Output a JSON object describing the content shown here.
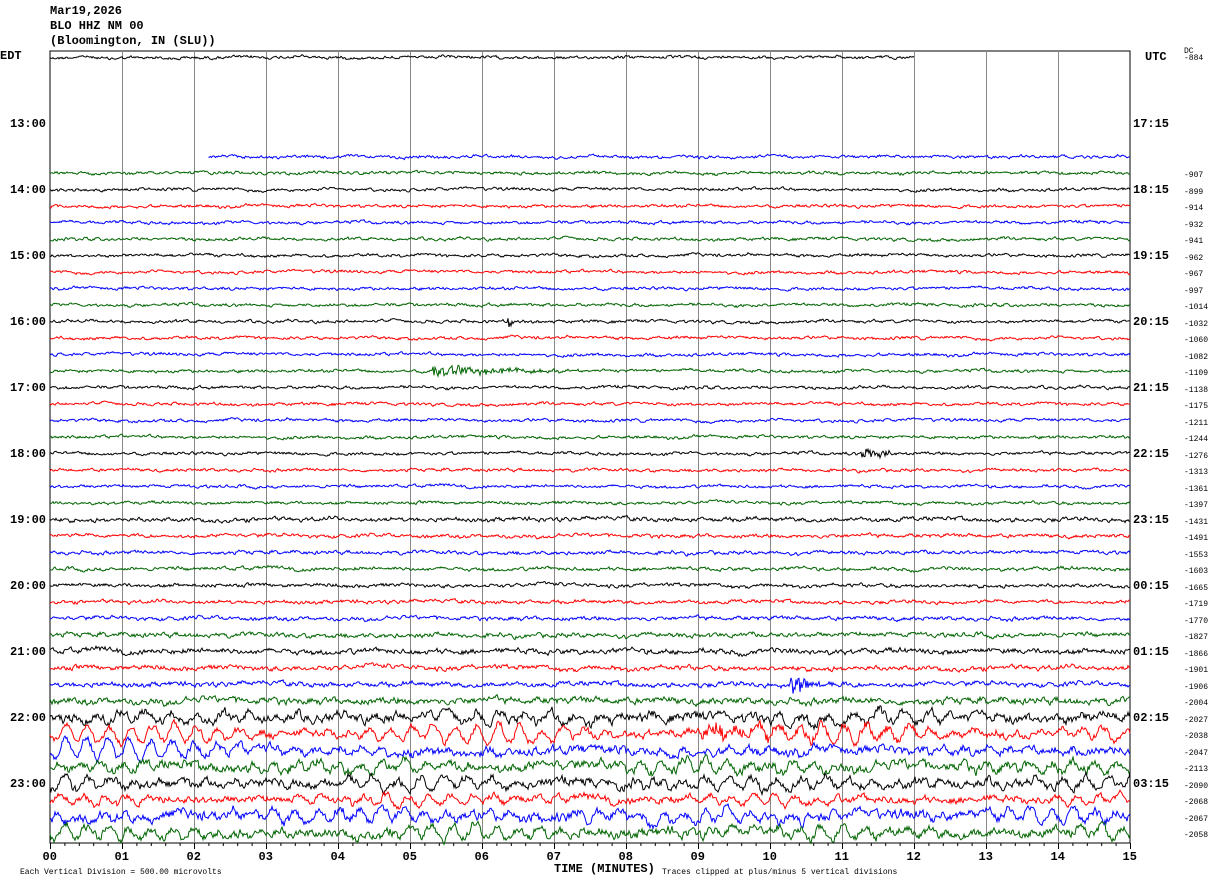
{
  "header": {
    "date": "Mar19,2026",
    "station": "BLO HHZ NM 00",
    "location": "(Bloomington, IN (SLU))"
  },
  "left_zone": "EDT",
  "right_zone": "UTC",
  "dc_label": "DC",
  "footer": {
    "scale": "Each Vertical Division =  500.00 microvolts",
    "xlabel": "TIME (MINUTES)",
    "clip": "Traces clipped at plus/minus 5 vertical divisions"
  },
  "chart_data": {
    "type": "line",
    "title": "BLO HHZ NM 00 helicorder",
    "xlabel": "TIME (MINUTES)",
    "xlim": [
      0,
      15
    ],
    "x_ticks": [
      "00",
      "01",
      "02",
      "03",
      "04",
      "05",
      "06",
      "07",
      "08",
      "09",
      "10",
      "11",
      "12",
      "13",
      "14",
      "15"
    ],
    "colors": [
      "#000000",
      "#ff0000",
      "#0000ff",
      "#006400"
    ],
    "left_labels": [
      {
        "row": 4,
        "text": "13:00"
      },
      {
        "row": 8,
        "text": "14:00"
      },
      {
        "row": 12,
        "text": "15:00"
      },
      {
        "row": 16,
        "text": "16:00"
      },
      {
        "row": 20,
        "text": "17:00"
      },
      {
        "row": 24,
        "text": "18:00"
      },
      {
        "row": 28,
        "text": "19:00"
      },
      {
        "row": 32,
        "text": "20:00"
      },
      {
        "row": 36,
        "text": "21:00"
      },
      {
        "row": 40,
        "text": "22:00"
      },
      {
        "row": 44,
        "text": "23:00"
      }
    ],
    "right_labels": [
      {
        "row": 4,
        "text": "17:15"
      },
      {
        "row": 8,
        "text": "18:15"
      },
      {
        "row": 12,
        "text": "19:15"
      },
      {
        "row": 16,
        "text": "20:15"
      },
      {
        "row": 20,
        "text": "21:15"
      },
      {
        "row": 24,
        "text": "22:15"
      },
      {
        "row": 28,
        "text": "23:15"
      },
      {
        "row": 32,
        "text": "00:15"
      },
      {
        "row": 36,
        "text": "01:15"
      },
      {
        "row": 40,
        "text": "02:15"
      },
      {
        "row": 44,
        "text": "03:15"
      }
    ],
    "first_row_dc": "-884",
    "dc_values": [
      "-907",
      "-899",
      "-914",
      "-932",
      "-941",
      "-962",
      "-967",
      "-997",
      "-1014",
      "-1032",
      "-1060",
      "-1082",
      "-1109",
      "-1138",
      "-1175",
      "-1211",
      "-1244",
      "-1276",
      "-1313",
      "-1361",
      "-1397",
      "-1431",
      "-1491",
      "-1553",
      "-1603",
      "-1665",
      "-1719",
      "-1770",
      "-1827",
      "-1866",
      "-1901",
      "-1906",
      "-2004",
      "-2027",
      "-2038",
      "-2047",
      "-2113",
      "-2090",
      "-2068",
      "-2067",
      "-2058"
    ],
    "dc_first_row": 7,
    "total_rows": 48,
    "segments": [
      {
        "row": 0,
        "start_min": 0,
        "end_min": 12
      },
      {
        "row": 6,
        "start_min": 2.2,
        "end_min": 15
      }
    ],
    "full_rows_from": 7,
    "noise_amplitude": {
      "default": 1.0,
      "28": 1.4,
      "29": 1.2,
      "30": 1.2,
      "31": 1.2,
      "32": 1.2,
      "33": 1.2,
      "34": 1.3,
      "35": 1.5,
      "36": 1.8,
      "37": 1.6,
      "38": 1.6,
      "39": 2.2,
      "40": 3.2,
      "41": 2.5,
      "42": 2.8,
      "43": 3.2,
      "44": 3.0,
      "45": 2.4,
      "46": 3.2,
      "47": 3.0
    },
    "swells": [
      {
        "row": 40,
        "start_min": 0,
        "end_min": 15,
        "amplitude": 5,
        "period_min": 0.35
      },
      {
        "row": 41,
        "start_min": 0,
        "end_min": 15,
        "amplitude": 9,
        "period_min": 0.3
      },
      {
        "row": 42,
        "start_min": 0,
        "end_min": 3,
        "amplitude": 10,
        "period_min": 0.3
      },
      {
        "row": 42,
        "start_min": 3,
        "end_min": 15,
        "amplitude": 3,
        "period_min": 0.3
      },
      {
        "row": 43,
        "start_min": 0,
        "end_min": 15,
        "amplitude": 5,
        "period_min": 0.3
      },
      {
        "row": 44,
        "start_min": 0,
        "end_min": 15,
        "amplitude": 6,
        "period_min": 0.33
      },
      {
        "row": 45,
        "start_min": 0,
        "end_min": 15,
        "amplitude": 4,
        "period_min": 0.3
      },
      {
        "row": 46,
        "start_min": 0,
        "end_min": 15,
        "amplitude": 6,
        "period_min": 0.3
      },
      {
        "row": 47,
        "start_min": 0,
        "end_min": 15,
        "amplitude": 6,
        "period_min": 0.3
      }
    ],
    "events": [
      {
        "row": 16,
        "minute": 6.35,
        "duration_min": 0.25,
        "amplitude": 8
      },
      {
        "row": 19,
        "minute": 5.3,
        "duration_min": 3.0,
        "amplitude": 6
      },
      {
        "row": 24,
        "minute": 11.25,
        "duration_min": 0.7,
        "amplitude": 9
      },
      {
        "row": 38,
        "minute": 10.25,
        "duration_min": 0.8,
        "amplitude": 12
      },
      {
        "row": 41,
        "minute": 9.0,
        "duration_min": 6.0,
        "amplitude": 6
      }
    ]
  }
}
